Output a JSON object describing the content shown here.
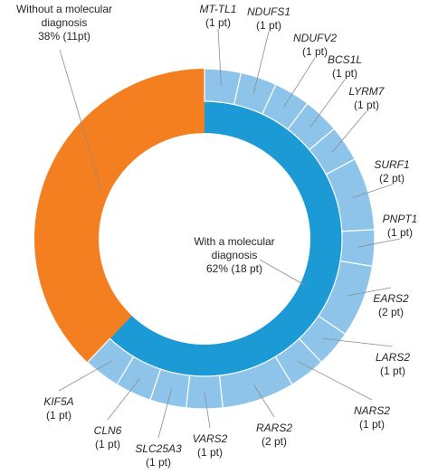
{
  "chart_data": {
    "type": "pie",
    "inner_ring": {
      "slices": [
        {
          "name": "With a molecular diagnosis",
          "value": 18,
          "label_lines": [
            "With a molecular",
            "diagnosis",
            "62% (18 pt)"
          ],
          "color": "#1b9ad6"
        },
        {
          "name": "Without a molecular diagnosis",
          "value": 11,
          "label_lines": [
            "Without a molecular",
            "diagnosis",
            "38% (11pt)"
          ],
          "color": "#f47f20"
        }
      ]
    },
    "outer_ring": {
      "color": "#8ec4ea",
      "slices": [
        {
          "name": "MT-TL1",
          "value": 1,
          "count_label": "(1 pt)"
        },
        {
          "name": "NDUFS1",
          "value": 1,
          "count_label": "(1 pt)"
        },
        {
          "name": "NDUFV2",
          "value": 1,
          "count_label": "(1 pt)"
        },
        {
          "name": "BCS1L",
          "value": 1,
          "count_label": "(1 pt)"
        },
        {
          "name": "LYRM7",
          "value": 1,
          "count_label": "(1 pt)"
        },
        {
          "name": "SURF1",
          "value": 2,
          "count_label": "(2 pt)"
        },
        {
          "name": "PNPT1",
          "value": 1,
          "count_label": "(1 pt)"
        },
        {
          "name": "EARS2",
          "value": 2,
          "count_label": "(2 pt)"
        },
        {
          "name": "LARS2",
          "value": 1,
          "count_label": "(1 pt)"
        },
        {
          "name": "NARS2",
          "value": 1,
          "count_label": "(1 pt)"
        },
        {
          "name": "RARS2",
          "value": 2,
          "count_label": "(2 pt)"
        },
        {
          "name": "VARS2",
          "value": 1,
          "count_label": "(1 pt)"
        },
        {
          "name": "SLC25A3",
          "value": 1,
          "count_label": "(1 pt)"
        },
        {
          "name": "CLN6",
          "value": 1,
          "count_label": "(1 pt)"
        },
        {
          "name": "KIF5A",
          "value": 1,
          "count_label": "(1 pt)"
        }
      ]
    }
  }
}
